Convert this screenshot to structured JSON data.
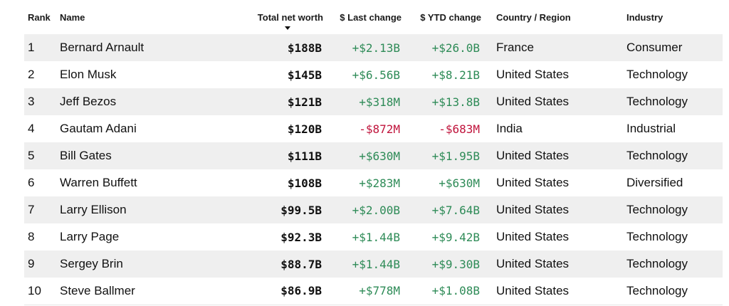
{
  "colors": {
    "positive": "#2e8b57",
    "negative": "#c0143c",
    "stripe": "#efefef"
  },
  "headers": {
    "rank": "Rank",
    "name": "Name",
    "net_worth": "Total net worth",
    "last_change": "$ Last change",
    "ytd_change": "$ YTD change",
    "country": "Country / Region",
    "industry": "Industry",
    "sort_icon": "sort-descending-icon"
  },
  "rows": [
    {
      "rank": "1",
      "name": "Bernard Arnault",
      "net_worth": "$188B",
      "last_change": "+$2.13B",
      "ytd_change": "+$26.0B",
      "country": "France",
      "industry": "Consumer"
    },
    {
      "rank": "2",
      "name": "Elon Musk",
      "net_worth": "$145B",
      "last_change": "+$6.56B",
      "ytd_change": "+$8.21B",
      "country": "United States",
      "industry": "Technology"
    },
    {
      "rank": "3",
      "name": "Jeff Bezos",
      "net_worth": "$121B",
      "last_change": "+$318M",
      "ytd_change": "+$13.8B",
      "country": "United States",
      "industry": "Technology"
    },
    {
      "rank": "4",
      "name": "Gautam Adani",
      "net_worth": "$120B",
      "last_change": "-$872M",
      "ytd_change": "-$683M",
      "country": "India",
      "industry": "Industrial"
    },
    {
      "rank": "5",
      "name": "Bill Gates",
      "net_worth": "$111B",
      "last_change": "+$630M",
      "ytd_change": "+$1.95B",
      "country": "United States",
      "industry": "Technology"
    },
    {
      "rank": "6",
      "name": "Warren Buffett",
      "net_worth": "$108B",
      "last_change": "+$283M",
      "ytd_change": "+$630M",
      "country": "United States",
      "industry": "Diversified"
    },
    {
      "rank": "7",
      "name": "Larry Ellison",
      "net_worth": "$99.5B",
      "last_change": "+$2.00B",
      "ytd_change": "+$7.64B",
      "country": "United States",
      "industry": "Technology"
    },
    {
      "rank": "8",
      "name": "Larry Page",
      "net_worth": "$92.3B",
      "last_change": "+$1.44B",
      "ytd_change": "+$9.42B",
      "country": "United States",
      "industry": "Technology"
    },
    {
      "rank": "9",
      "name": "Sergey Brin",
      "net_worth": "$88.7B",
      "last_change": "+$1.44B",
      "ytd_change": "+$9.30B",
      "country": "United States",
      "industry": "Technology"
    },
    {
      "rank": "10",
      "name": "Steve Ballmer",
      "net_worth": "$86.9B",
      "last_change": "+$778M",
      "ytd_change": "+$1.08B",
      "country": "United States",
      "industry": "Technology"
    }
  ]
}
